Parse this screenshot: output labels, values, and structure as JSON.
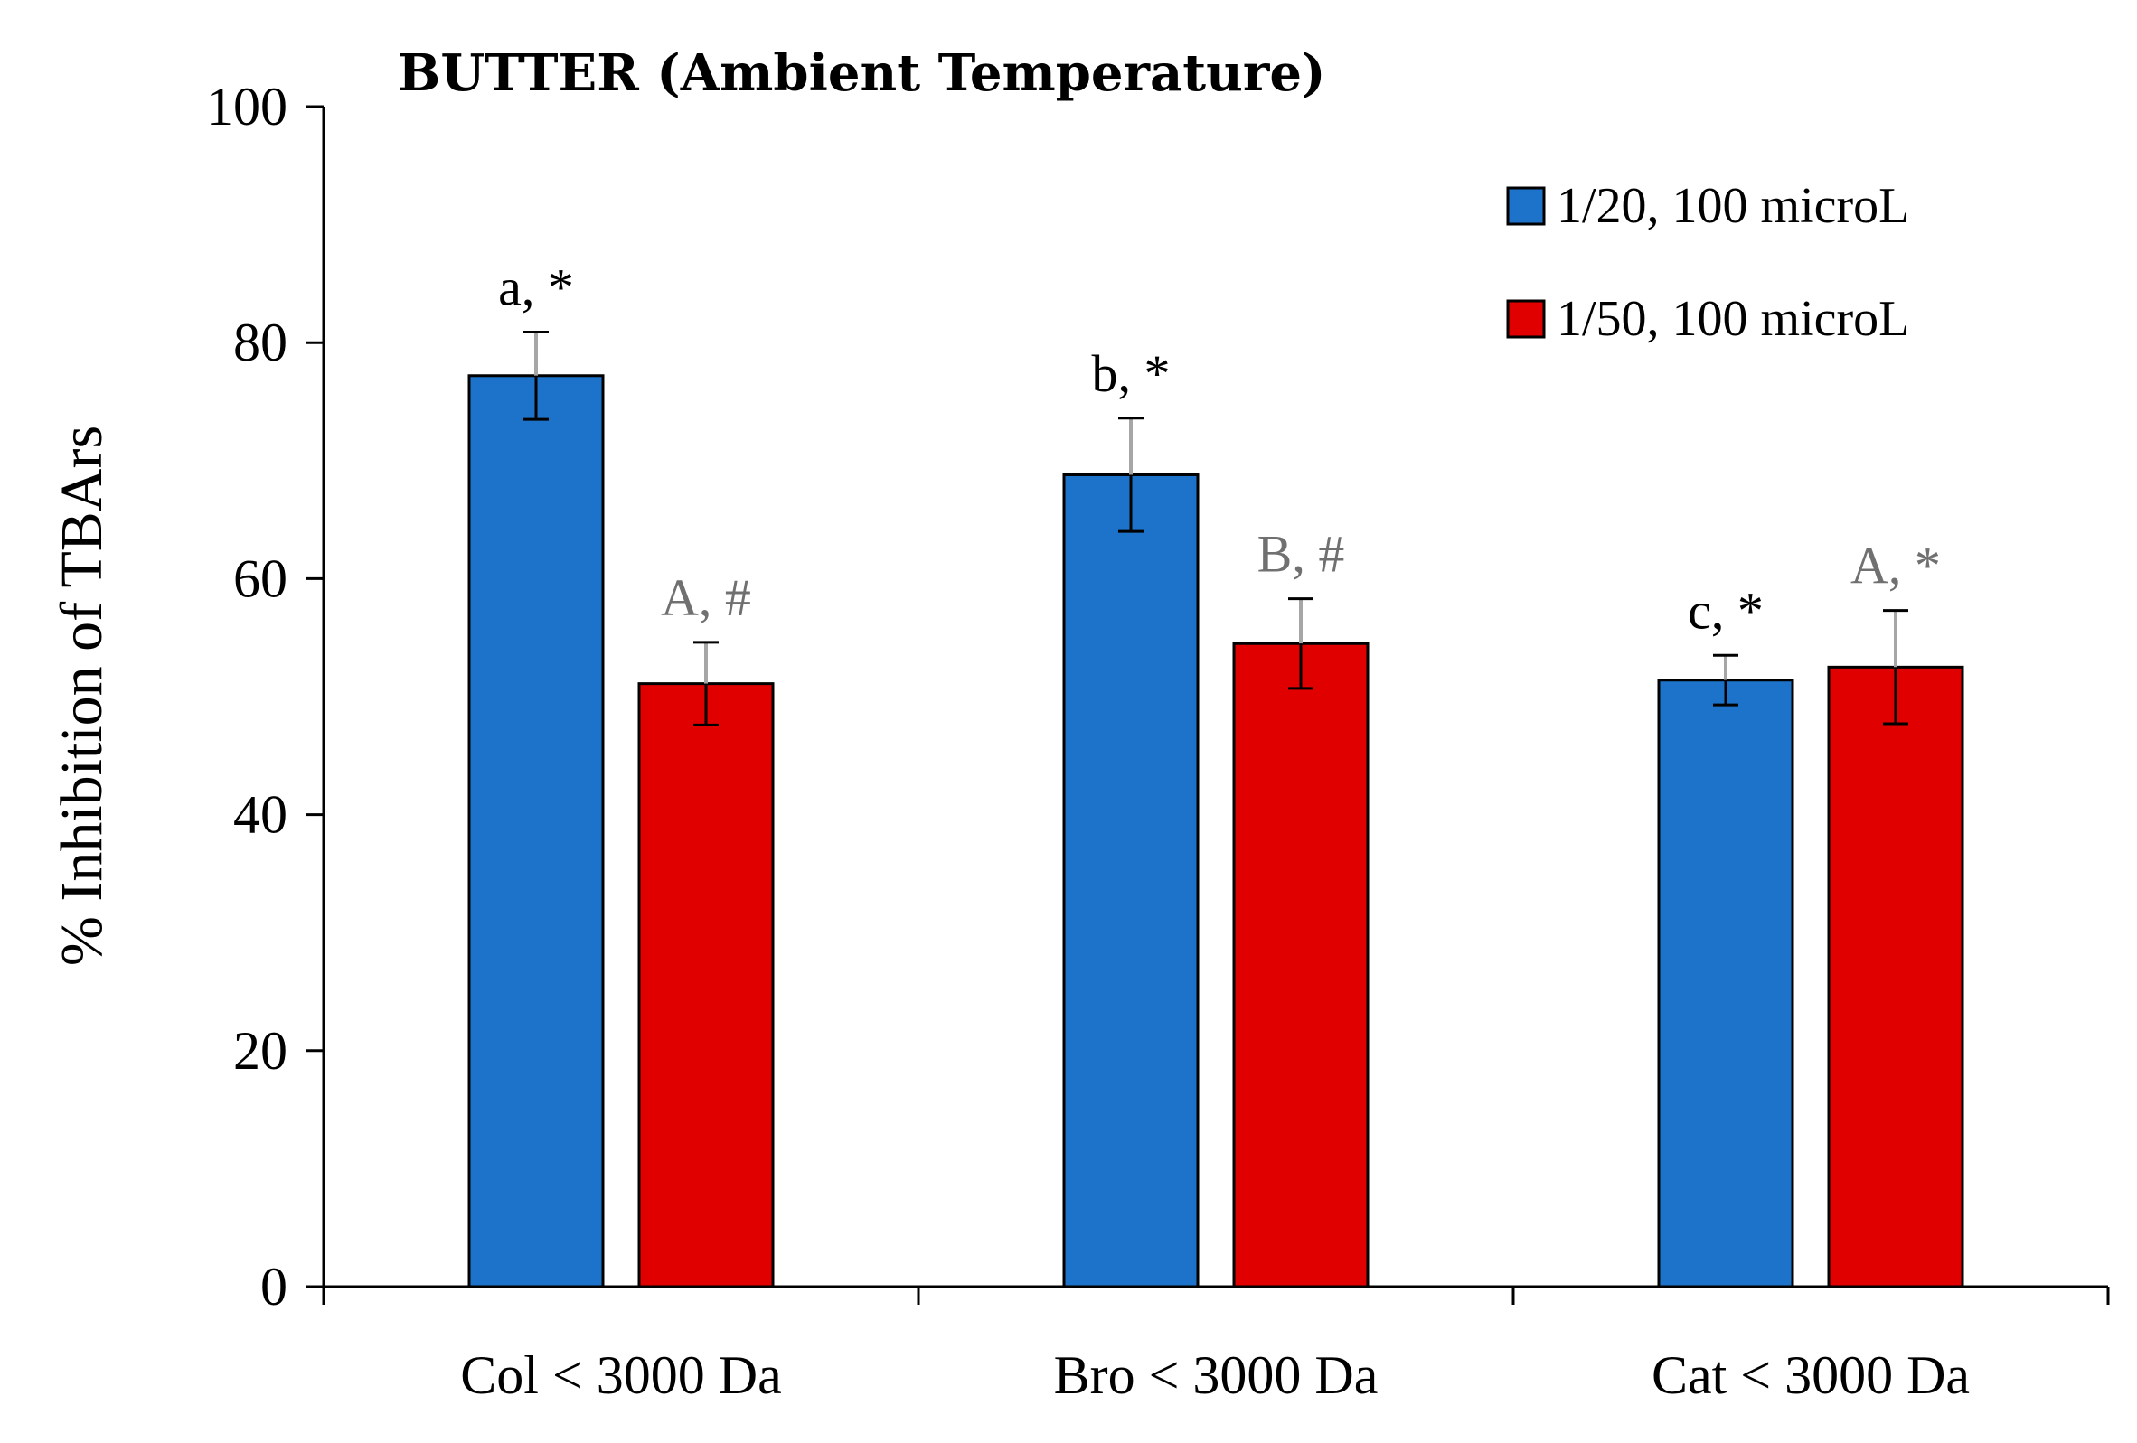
{
  "chart_data": {
    "type": "bar",
    "title": "BUTTER (Ambient Temperature)",
    "xlabel": "",
    "ylabel": "% Inhibition of TBArs",
    "ylim": [
      0,
      100
    ],
    "yticks": [
      "0",
      "20",
      "40",
      "60",
      "80",
      "100"
    ],
    "categories": [
      "Col < 3000 Da",
      "Bro < 3000 Da",
      "Cat < 3000 Da"
    ],
    "series": [
      {
        "name": "1/20, 100 microL",
        "color": "#1C73C9",
        "values": [
          77.2,
          68.8,
          51.4
        ],
        "errors": [
          3.7,
          4.8,
          2.1
        ],
        "labels": [
          "a, *",
          "b, *",
          "c, *"
        ],
        "label_color": "#000000"
      },
      {
        "name": "1/50, 100 microL",
        "color": "#E00000",
        "values": [
          51.1,
          54.5,
          52.5
        ],
        "errors": [
          3.5,
          3.8,
          4.8
        ],
        "labels": [
          "A, #",
          "B, #",
          "A, *"
        ],
        "label_color": "#707070"
      }
    ],
    "legend_position": "top-right",
    "grid": false
  }
}
